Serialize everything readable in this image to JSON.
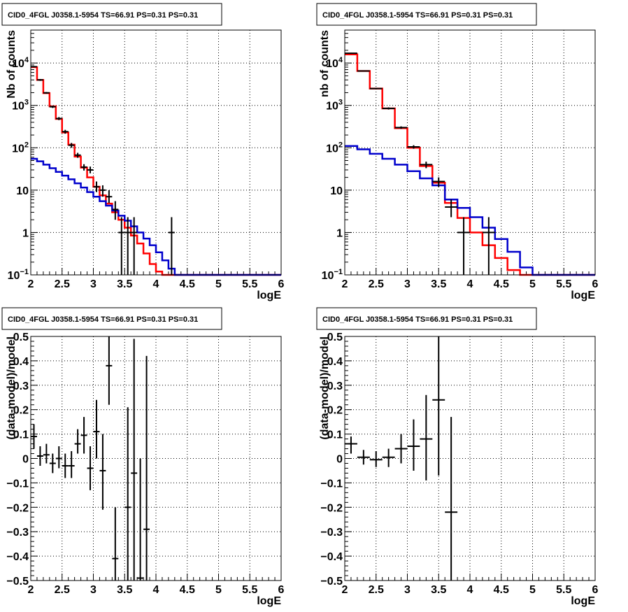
{
  "colors": {
    "data": "#000000",
    "model_total": "#ff0000",
    "model_component": "#0000cc"
  },
  "chart_data": [
    {
      "id": "top-left",
      "type": "line",
      "title": "CID0_4FGL J0358.1-5954 TS=66.91 PS=0.31 PS=0.31",
      "xlabel": "logE",
      "ylabel": "Nb of counts",
      "xlim": [
        2,
        6
      ],
      "ylim": [
        0.1,
        60000
      ],
      "yscale": "log",
      "grid": true,
      "xticks": [
        "2",
        "2.5",
        "3",
        "3.5",
        "4",
        "4.5",
        "5",
        "5.5",
        "6"
      ],
      "yticks": [
        {
          "v": 0.1,
          "label": "10",
          "exp": "−1"
        },
        {
          "v": 1,
          "label": "1",
          "exp": ""
        },
        {
          "v": 10,
          "label": "10",
          "exp": ""
        },
        {
          "v": 100,
          "label": "10",
          "exp": "2"
        },
        {
          "v": 1000,
          "label": "10",
          "exp": "3"
        },
        {
          "v": 10000,
          "label": "10",
          "exp": "4"
        }
      ],
      "series": [
        {
          "role": "model_total",
          "style": "step",
          "edges": [
            2,
            2.1,
            2.2,
            2.3,
            2.4,
            2.5,
            2.6,
            2.7,
            2.8,
            2.9,
            3.0,
            3.1,
            3.2,
            3.3,
            3.4,
            3.5,
            3.6,
            3.7,
            3.8,
            3.9,
            4.0,
            4.1,
            4.2,
            4.3,
            4.4,
            4.5,
            4.6,
            4.7,
            4.8,
            4.9,
            5.0,
            5.1,
            5.2,
            5.3,
            5.4,
            5.5,
            5.6,
            5.7,
            5.8,
            5.9,
            6.0
          ],
          "values": [
            8000,
            4000,
            1950,
            950,
            480,
            230,
            118,
            62,
            34,
            20,
            12,
            7.5,
            4.8,
            3.0,
            2.0,
            1.3,
            0.85,
            0.55,
            0.32,
            0.18,
            0.12,
            0.1,
            0.1,
            0.1,
            0.1,
            0.1,
            0.1,
            0.1,
            0.1,
            0.1,
            0.1,
            0.1,
            0.1,
            0.1,
            0.1,
            0.1,
            0.1,
            0.1,
            0.1,
            0.1
          ]
        },
        {
          "role": "model_component",
          "style": "step",
          "edges": [
            2,
            2.1,
            2.2,
            2.3,
            2.4,
            2.5,
            2.6,
            2.7,
            2.8,
            2.9,
            3.0,
            3.1,
            3.2,
            3.3,
            3.4,
            3.5,
            3.6,
            3.7,
            3.8,
            3.9,
            4.0,
            4.1,
            4.2,
            4.3,
            4.4,
            4.5,
            4.6,
            4.7,
            4.8,
            4.9,
            5.0,
            5.1,
            5.2,
            5.3,
            5.4,
            5.5,
            5.6,
            5.7,
            5.8,
            5.9,
            6.0
          ],
          "values": [
            55,
            48,
            40,
            33,
            27,
            22,
            18,
            14.5,
            11.5,
            9,
            7,
            5.5,
            4.3,
            3.3,
            2.5,
            1.9,
            1.4,
            1.0,
            0.72,
            0.5,
            0.34,
            0.22,
            0.14,
            0.1,
            0.1,
            0.1,
            0.1,
            0.1,
            0.1,
            0.1,
            0.1,
            0.1,
            0.1,
            0.1,
            0.1,
            0.1,
            0.1,
            0.1,
            0.1,
            0.1
          ]
        },
        {
          "role": "data",
          "style": "errorbar",
          "points": [
            {
              "x": 2.05,
              "y": 8200,
              "lo": 7900,
              "hi": 8500,
              "xw": 0.05
            },
            {
              "x": 2.15,
              "y": 4000,
              "lo": 3800,
              "hi": 4200,
              "xw": 0.05
            },
            {
              "x": 2.25,
              "y": 1980,
              "lo": 1900,
              "hi": 2070,
              "xw": 0.05
            },
            {
              "x": 2.35,
              "y": 930,
              "lo": 870,
              "hi": 990,
              "xw": 0.05
            },
            {
              "x": 2.45,
              "y": 490,
              "lo": 450,
              "hi": 530,
              "xw": 0.05
            },
            {
              "x": 2.55,
              "y": 240,
              "lo": 215,
              "hi": 265,
              "xw": 0.05
            },
            {
              "x": 2.65,
              "y": 115,
              "lo": 100,
              "hi": 130,
              "xw": 0.05
            },
            {
              "x": 2.75,
              "y": 67,
              "lo": 58,
              "hi": 76,
              "xw": 0.05
            },
            {
              "x": 2.85,
              "y": 35,
              "lo": 29,
              "hi": 41,
              "xw": 0.05
            },
            {
              "x": 2.95,
              "y": 30,
              "lo": 25,
              "hi": 36,
              "xw": 0.05
            },
            {
              "x": 3.05,
              "y": 12,
              "lo": 9,
              "hi": 16,
              "xw": 0.05
            },
            {
              "x": 3.15,
              "y": 10,
              "lo": 7,
              "hi": 13,
              "xw": 0.05
            },
            {
              "x": 3.25,
              "y": 7,
              "lo": 5,
              "hi": 10,
              "xw": 0.05
            },
            {
              "x": 3.35,
              "y": 3.5,
              "lo": 2,
              "hi": 5.5,
              "xw": 0.05
            },
            {
              "x": 3.45,
              "y": 1,
              "lo": 0.1,
              "hi": 2.3,
              "xw": 0.05
            },
            {
              "x": 3.55,
              "y": 1,
              "lo": 0.1,
              "hi": 2.3,
              "xw": 0.05
            },
            {
              "x": 3.65,
              "y": 1,
              "lo": 0.1,
              "hi": 2.3,
              "xw": 0.05
            },
            {
              "x": 4.25,
              "y": 1,
              "lo": 0.1,
              "hi": 2.3,
              "xw": 0.05
            }
          ]
        }
      ]
    },
    {
      "id": "top-right",
      "type": "line",
      "title": "CID0_4FGL J0358.1-5954 TS=66.91 PS=0.31 PS=0.31",
      "xlabel": "logE",
      "ylabel": "nb of counts",
      "xlim": [
        2,
        6
      ],
      "ylim": [
        0.1,
        60000
      ],
      "yscale": "log",
      "grid": true,
      "xticks": [
        "2",
        "2.5",
        "3",
        "3.5",
        "4",
        "4.5",
        "5",
        "5.5",
        "6"
      ],
      "yticks": [
        {
          "v": 0.1,
          "label": "10",
          "exp": "−1"
        },
        {
          "v": 1,
          "label": "1",
          "exp": ""
        },
        {
          "v": 10,
          "label": "10",
          "exp": ""
        },
        {
          "v": 100,
          "label": "10",
          "exp": "2"
        },
        {
          "v": 1000,
          "label": "10",
          "exp": "3"
        },
        {
          "v": 10000,
          "label": "10",
          "exp": "4"
        }
      ],
      "series": [
        {
          "role": "model_total",
          "style": "step",
          "edges": [
            2,
            2.2,
            2.4,
            2.6,
            2.8,
            3.0,
            3.2,
            3.4,
            3.6,
            3.8,
            4.0,
            4.2,
            4.4,
            4.6,
            4.8,
            5.0,
            5.2,
            5.4,
            5.6,
            5.8,
            6.0
          ],
          "values": [
            16000,
            6500,
            2500,
            850,
            290,
            100,
            37,
            15,
            5,
            2.2,
            1.0,
            0.5,
            0.25,
            0.13,
            0.1,
            0.1,
            0.1,
            0.1,
            0.1,
            0.1
          ]
        },
        {
          "role": "model_component",
          "style": "step",
          "edges": [
            2,
            2.2,
            2.4,
            2.6,
            2.8,
            3.0,
            3.2,
            3.4,
            3.6,
            3.8,
            4.0,
            4.2,
            4.4,
            4.6,
            4.8,
            5.0,
            5.2,
            5.4,
            5.6,
            5.8,
            6.0
          ],
          "values": [
            110,
            92,
            72,
            55,
            40,
            28,
            19,
            13,
            6,
            3.8,
            2.3,
            1.3,
            0.7,
            0.35,
            0.15,
            0.1,
            0.1,
            0.1,
            0.1,
            0.1
          ]
        },
        {
          "role": "data",
          "style": "errorbar",
          "points": [
            {
              "x": 2.1,
              "y": 17000,
              "lo": 16500,
              "hi": 17500,
              "xw": 0.1
            },
            {
              "x": 2.3,
              "y": 6500,
              "lo": 6300,
              "hi": 6700,
              "xw": 0.1
            },
            {
              "x": 2.5,
              "y": 2500,
              "lo": 2400,
              "hi": 2600,
              "xw": 0.1
            },
            {
              "x": 2.7,
              "y": 850,
              "lo": 800,
              "hi": 900,
              "xw": 0.1
            },
            {
              "x": 2.9,
              "y": 300,
              "lo": 280,
              "hi": 320,
              "xw": 0.1
            },
            {
              "x": 3.1,
              "y": 105,
              "lo": 95,
              "hi": 115,
              "xw": 0.1
            },
            {
              "x": 3.3,
              "y": 40,
              "lo": 33,
              "hi": 47,
              "xw": 0.1
            },
            {
              "x": 3.5,
              "y": 16,
              "lo": 12,
              "hi": 20,
              "xw": 0.1
            },
            {
              "x": 3.7,
              "y": 4,
              "lo": 2.3,
              "hi": 6,
              "xw": 0.1
            },
            {
              "x": 3.9,
              "y": 1,
              "lo": 0.1,
              "hi": 2.3,
              "xw": 0.1
            },
            {
              "x": 4.3,
              "y": 1,
              "lo": 0.1,
              "hi": 2.3,
              "xw": 0.1
            }
          ]
        }
      ]
    },
    {
      "id": "bottom-left",
      "type": "scatter",
      "title": "CID0_4FGL J0358.1-5954 TS=66.91 PS=0.31 PS=0.31",
      "xlabel": "logE",
      "ylabel": "(data-model)/model",
      "xlim": [
        2,
        6
      ],
      "ylim": [
        -0.5,
        0.5
      ],
      "yscale": "linear",
      "grid": true,
      "xticks": [
        "2",
        "2.5",
        "3",
        "3.5",
        "4",
        "4.5",
        "5",
        "5.5",
        "6"
      ],
      "yticks": [
        {
          "v": -0.5,
          "label": "−0.5",
          "exp": ""
        },
        {
          "v": -0.4,
          "label": "−0.4",
          "exp": ""
        },
        {
          "v": -0.3,
          "label": "−0.3",
          "exp": ""
        },
        {
          "v": -0.2,
          "label": "−0.2",
          "exp": ""
        },
        {
          "v": -0.1,
          "label": "−0.1",
          "exp": ""
        },
        {
          "v": 0,
          "label": "0",
          "exp": ""
        },
        {
          "v": 0.1,
          "label": "0.1",
          "exp": ""
        },
        {
          "v": 0.2,
          "label": "0.2",
          "exp": ""
        },
        {
          "v": 0.3,
          "label": "0.3",
          "exp": ""
        },
        {
          "v": 0.4,
          "label": "0.4",
          "exp": ""
        },
        {
          "v": 0.5,
          "label": "0.5",
          "exp": ""
        }
      ],
      "series": [
        {
          "role": "data",
          "style": "errorbar",
          "points": [
            {
              "x": 2.05,
              "y": 0.09,
              "lo": 0.04,
              "hi": 0.14,
              "xw": 0.05
            },
            {
              "x": 2.15,
              "y": 0.01,
              "lo": -0.03,
              "hi": 0.05,
              "xw": 0.05
            },
            {
              "x": 2.25,
              "y": 0.015,
              "lo": -0.02,
              "hi": 0.06,
              "xw": 0.05
            },
            {
              "x": 2.35,
              "y": -0.02,
              "lo": -0.06,
              "hi": 0.02,
              "xw": 0.05
            },
            {
              "x": 2.45,
              "y": 0.0,
              "lo": -0.04,
              "hi": 0.05,
              "xw": 0.05
            },
            {
              "x": 2.55,
              "y": -0.03,
              "lo": -0.08,
              "hi": 0.02,
              "xw": 0.05
            },
            {
              "x": 2.65,
              "y": -0.03,
              "lo": -0.08,
              "hi": 0.03,
              "xw": 0.05
            },
            {
              "x": 2.75,
              "y": 0.06,
              "lo": 0.02,
              "hi": 0.12,
              "xw": 0.05
            },
            {
              "x": 2.85,
              "y": 0.095,
              "lo": 0.02,
              "hi": 0.17,
              "xw": 0.05
            },
            {
              "x": 2.95,
              "y": -0.04,
              "lo": -0.13,
              "hi": 0.05,
              "xw": 0.05
            },
            {
              "x": 3.05,
              "y": 0.11,
              "lo": 0.0,
              "hi": 0.24,
              "xw": 0.05
            },
            {
              "x": 3.15,
              "y": -0.05,
              "lo": -0.21,
              "hi": 0.1,
              "xw": 0.05
            },
            {
              "x": 3.25,
              "y": 0.38,
              "lo": 0.22,
              "hi": 0.5,
              "xw": 0.05
            },
            {
              "x": 3.35,
              "y": -0.41,
              "lo": -0.5,
              "hi": -0.2,
              "xw": 0.05
            },
            {
              "x": 3.55,
              "y": -0.2,
              "lo": -0.5,
              "hi": 0.21,
              "xw": 0.05
            },
            {
              "x": 3.65,
              "y": -0.06,
              "lo": -0.5,
              "hi": 0.49,
              "xw": 0.05
            },
            {
              "x": 3.75,
              "y": -0.49,
              "lo": -0.5,
              "hi": 0.0,
              "xw": 0.05
            },
            {
              "x": 3.85,
              "y": -0.29,
              "lo": -0.5,
              "hi": 0.42,
              "xw": 0.05
            }
          ]
        }
      ]
    },
    {
      "id": "bottom-right",
      "type": "scatter",
      "title": "CID0_4FGL J0358.1-5954 TS=66.91 PS=0.31 PS=0.31",
      "xlabel": "logE",
      "ylabel": "(data-model)/model",
      "xlim": [
        2,
        6
      ],
      "ylim": [
        -0.5,
        0.5
      ],
      "yscale": "linear",
      "grid": true,
      "xticks": [
        "2",
        "2.5",
        "3",
        "3.5",
        "4",
        "4.5",
        "5",
        "5.5",
        "6"
      ],
      "yticks": [
        {
          "v": -0.5,
          "label": "−0.5",
          "exp": ""
        },
        {
          "v": -0.4,
          "label": "−0.4",
          "exp": ""
        },
        {
          "v": -0.3,
          "label": "−0.3",
          "exp": ""
        },
        {
          "v": -0.2,
          "label": "−0.2",
          "exp": ""
        },
        {
          "v": -0.1,
          "label": "−0.1",
          "exp": ""
        },
        {
          "v": 0,
          "label": "0",
          "exp": ""
        },
        {
          "v": 0.1,
          "label": "0.1",
          "exp": ""
        },
        {
          "v": 0.2,
          "label": "0.2",
          "exp": ""
        },
        {
          "v": 0.3,
          "label": "0.3",
          "exp": ""
        },
        {
          "v": 0.4,
          "label": "0.4",
          "exp": ""
        },
        {
          "v": 0.5,
          "label": "0.5",
          "exp": ""
        }
      ],
      "series": [
        {
          "role": "data",
          "style": "errorbar",
          "points": [
            {
              "x": 2.1,
              "y": 0.06,
              "lo": 0.02,
              "hi": 0.09,
              "xw": 0.1
            },
            {
              "x": 2.3,
              "y": 0.005,
              "lo": -0.025,
              "hi": 0.035,
              "xw": 0.1
            },
            {
              "x": 2.5,
              "y": -0.005,
              "lo": -0.035,
              "hi": 0.03,
              "xw": 0.1
            },
            {
              "x": 2.7,
              "y": 0.005,
              "lo": -0.035,
              "hi": 0.04,
              "xw": 0.1
            },
            {
              "x": 2.9,
              "y": 0.04,
              "lo": -0.02,
              "hi": 0.1,
              "xw": 0.1
            },
            {
              "x": 3.1,
              "y": 0.05,
              "lo": -0.05,
              "hi": 0.16,
              "xw": 0.1
            },
            {
              "x": 3.3,
              "y": 0.08,
              "lo": -0.09,
              "hi": 0.26,
              "xw": 0.1
            },
            {
              "x": 3.5,
              "y": 0.24,
              "lo": -0.07,
              "hi": 0.5,
              "xw": 0.1
            },
            {
              "x": 3.7,
              "y": -0.22,
              "lo": -0.5,
              "hi": 0.17,
              "xw": 0.1
            }
          ]
        }
      ]
    }
  ]
}
